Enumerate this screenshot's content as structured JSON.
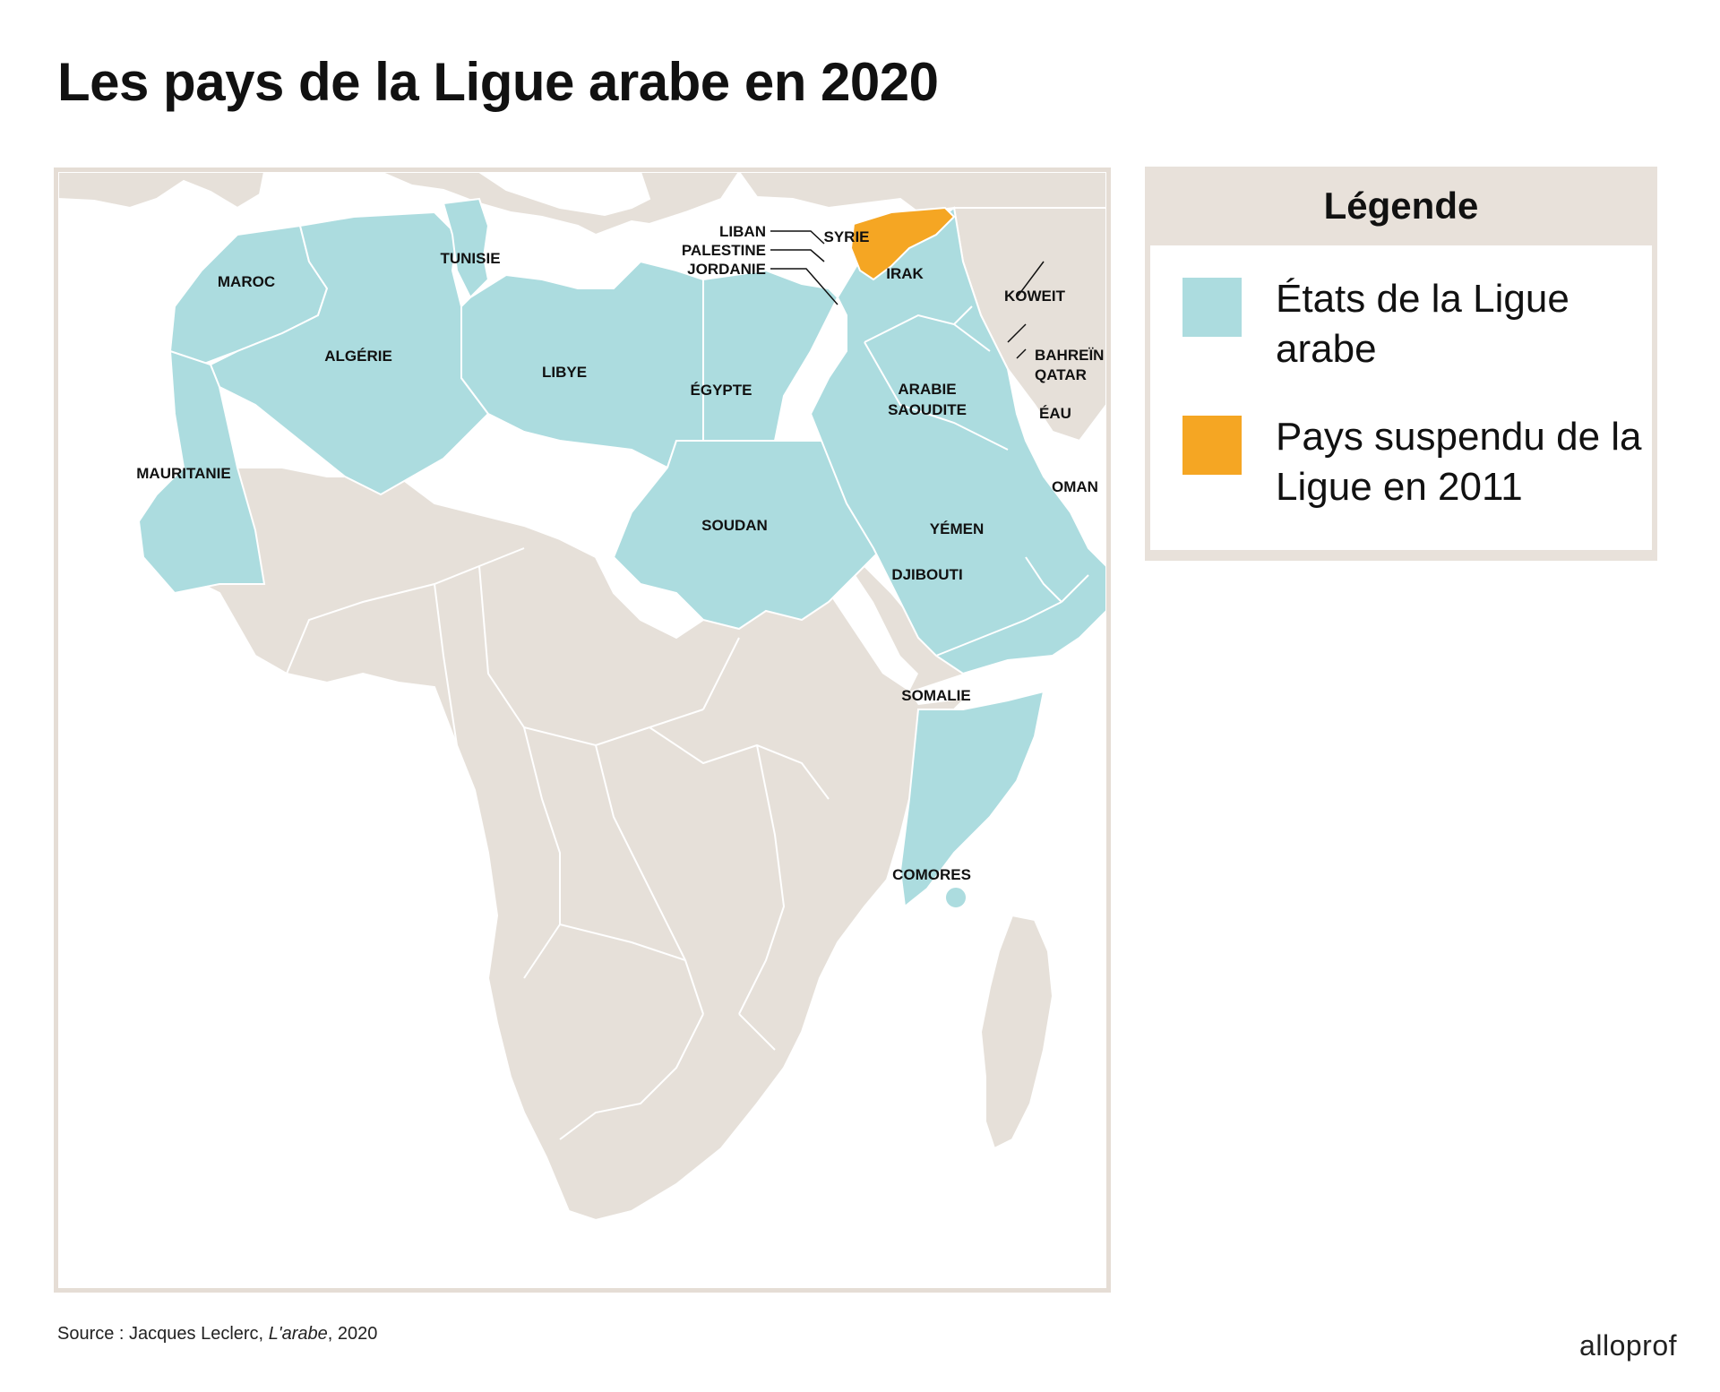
{
  "title": "Les pays de la Ligue arabe en 2020",
  "colors": {
    "league": "#acdcdf",
    "suspended": "#f5a623",
    "land": "#e6e0d9",
    "sea": "#ffffff"
  },
  "legend": {
    "title": "Légende",
    "items": [
      {
        "label": "États de la Ligue arabe",
        "color": "#acdcdf"
      },
      {
        "label": "Pays suspendu de la Ligue en 2011",
        "color": "#f5a623"
      }
    ]
  },
  "countries": {
    "maroc": "MAROC",
    "algerie": "ALGÉRIE",
    "tunisie": "TUNISIE",
    "libye": "LIBYE",
    "egypte": "ÉGYPTE",
    "mauritanie": "MAURITANIE",
    "soudan": "SOUDAN",
    "liban": "LIBAN",
    "palestine": "PALESTINE",
    "jordanie": "JORDANIE",
    "syrie": "SYRIE",
    "irak": "IRAK",
    "koweit": "KOWEIT",
    "bahrein": "BAHREÏN",
    "qatar": "QATAR",
    "eau": "ÉAU",
    "arabie_1": "ARABIE",
    "arabie_2": "SAOUDITE",
    "oman": "OMAN",
    "yemen": "YÉMEN",
    "djibouti": "DJIBOUTI",
    "somalie": "SOMALIE",
    "comores": "COMORES"
  },
  "source": {
    "prefix": "Source : Jacques Leclerc, ",
    "work": "L'arabe",
    "suffix": ", 2020"
  },
  "brand": "alloprof"
}
